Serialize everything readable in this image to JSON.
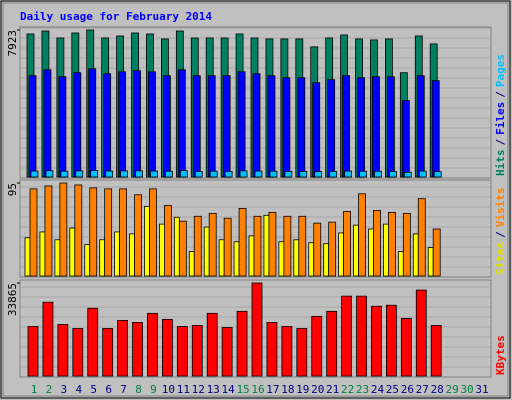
{
  "chart_data": {
    "type": "bar",
    "title": "Daily usage for February 2014",
    "categories": [
      "1",
      "2",
      "3",
      "4",
      "5",
      "6",
      "7",
      "8",
      "9",
      "10",
      "11",
      "12",
      "13",
      "14",
      "15",
      "16",
      "17",
      "18",
      "19",
      "20",
      "21",
      "22",
      "23",
      "24",
      "25",
      "26",
      "27",
      "28",
      "29",
      "30",
      "31"
    ],
    "category_colors": [
      "#008040",
      "#008040",
      "#000080",
      "#000080",
      "#000080",
      "#000080",
      "#000080",
      "#008040",
      "#008040",
      "#000080",
      "#000080",
      "#000080",
      "#000080",
      "#000080",
      "#008040",
      "#008040",
      "#000080",
      "#000080",
      "#000080",
      "#000080",
      "#000080",
      "#008040",
      "#008040",
      "#000080",
      "#000080",
      "#000080",
      "#000080",
      "#000080",
      "#008040",
      "#008040",
      "#000080"
    ],
    "legend_separator": "/",
    "panels": [
      {
        "ylim": [
          0,
          7923
        ],
        "yticks": [
          7923
        ],
        "series": [
          {
            "name": "Hits",
            "color": "#008060",
            "values": [
              7709,
              7870,
              7495,
              7762,
              7923,
              7495,
              7602,
              7762,
              7709,
              7441,
              7870,
              7495,
              7495,
              7495,
              7709,
              7495,
              7441,
              7441,
              7441,
              7013,
              7495,
              7655,
              7441,
              7388,
              7441,
              5621,
              7602,
              7174,
              null,
              null,
              null
            ]
          },
          {
            "name": "Files",
            "color": "#0000ff",
            "values": [
              5460,
              5781,
              5407,
              5621,
              5835,
              5567,
              5674,
              5728,
              5674,
              5460,
              5781,
              5460,
              5460,
              5460,
              5674,
              5567,
              5460,
              5353,
              5353,
              5085,
              5246,
              5460,
              5353,
              5407,
              5407,
              4122,
              5460,
              5193,
              null,
              null,
              null
            ]
          },
          {
            "name": "Pages",
            "color": "#00c0ff",
            "values": [
              320,
              340,
              310,
              330,
              350,
              320,
              330,
              330,
              320,
              310,
              340,
              300,
              310,
              300,
              330,
              320,
              310,
              300,
              300,
              290,
              300,
              320,
              310,
              310,
              300,
              250,
              320,
              290,
              null,
              null,
              null
            ]
          }
        ]
      },
      {
        "ylim": [
          0,
          95
        ],
        "yticks": [
          95
        ],
        "series": [
          {
            "name": "Sites",
            "color": "#ffff00",
            "values": [
              39,
              45,
              37,
              49,
              32,
              37,
              45,
              43,
              71,
              53,
              60,
              25,
              50,
              37,
              35,
              41,
              62,
              35,
              37,
              34,
              33,
              44,
              52,
              48,
              53,
              25,
              43,
              29,
              null,
              null,
              null
            ]
          },
          {
            "name": "Visits",
            "color": "#ff8000",
            "values": [
              89,
              92,
              95,
              93,
              90,
              89,
              89,
              83,
              89,
              72,
              56,
              61,
              64,
              59,
              69,
              61,
              65,
              61,
              61,
              54,
              55,
              66,
              84,
              67,
              65,
              64,
              79,
              48,
              null,
              null,
              null
            ]
          }
        ]
      },
      {
        "ylim": [
          0,
          33865
        ],
        "yticks": [
          33865
        ],
        "series": [
          {
            "name": "KBytes",
            "color": "#ff0000",
            "values": [
              18037,
              26871,
              18773,
              17301,
              24663,
              17301,
              20246,
              19509,
              22822,
              20614,
              18037,
              18405,
              22822,
              17669,
              23558,
              33865,
              19509,
              18037,
              17301,
              21718,
              23558,
              29080,
              29080,
              25399,
              25767,
              20982,
              31289,
              18405,
              null,
              null,
              null
            ]
          }
        ]
      }
    ]
  }
}
